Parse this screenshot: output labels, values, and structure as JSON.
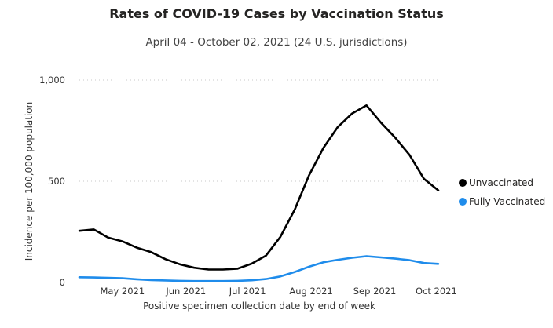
{
  "chart_data": {
    "type": "line",
    "title": "Rates of COVID-19 Cases by Vaccination Status",
    "subtitle": "April 04 - October 02, 2021 (24 U.S. jurisdictions)",
    "xlabel": "Positive specimen collection date by end of week",
    "ylabel": "Incidence per 100,000 population",
    "ylim": [
      0,
      1000
    ],
    "yticks": [
      0,
      500,
      1000
    ],
    "ytick_labels": [
      "0",
      "500",
      "1,000"
    ],
    "xlim": [
      "2021-04-10",
      "2021-10-02"
    ],
    "xticks": [
      "2021-05-01",
      "2021-06-01",
      "2021-07-01",
      "2021-08-01",
      "2021-09-01",
      "2021-10-01"
    ],
    "xtick_labels": [
      "May 2021",
      "Jun 2021",
      "Jul 2021",
      "Aug 2021",
      "Sep 2021",
      "Oct 2021"
    ],
    "grid": true,
    "legend_position": "right",
    "x": [
      "2021-04-10",
      "2021-04-17",
      "2021-04-24",
      "2021-05-01",
      "2021-05-08",
      "2021-05-15",
      "2021-05-22",
      "2021-05-29",
      "2021-06-05",
      "2021-06-12",
      "2021-06-19",
      "2021-06-26",
      "2021-07-03",
      "2021-07-10",
      "2021-07-17",
      "2021-07-24",
      "2021-07-31",
      "2021-08-07",
      "2021-08-14",
      "2021-08-21",
      "2021-08-28",
      "2021-09-04",
      "2021-09-11",
      "2021-09-18",
      "2021-09-25",
      "2021-10-02"
    ],
    "series": [
      {
        "name": "Unvaccinated",
        "color": "#000000",
        "values": [
          255,
          262,
          222,
          203,
          172,
          150,
          115,
          90,
          73,
          64,
          64,
          68,
          93,
          133,
          225,
          360,
          530,
          665,
          768,
          835,
          875,
          790,
          715,
          630,
          512,
          455
        ]
      },
      {
        "name": "Fully Vaccinated",
        "color": "#1f8ceb",
        "values": [
          26,
          25,
          23,
          21,
          16,
          12,
          10,
          8,
          7,
          7,
          7,
          8,
          11,
          17,
          30,
          52,
          78,
          100,
          112,
          122,
          130,
          124,
          118,
          110,
          96,
          92
        ]
      }
    ]
  }
}
